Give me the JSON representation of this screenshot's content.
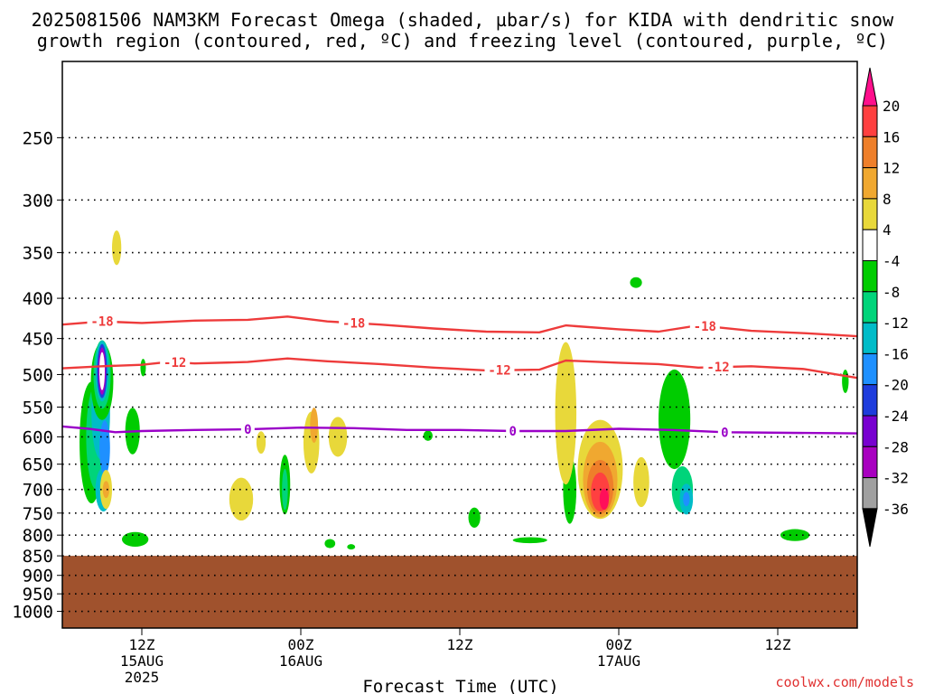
{
  "title_line1": "2025081506 NAM3KM Forecast Omega (shaded, µbar/s) for KIDA with dendritic snow",
  "title_line2": "growth region (contoured, red, ºC) and freezing level (contoured, purple, ºC)",
  "credit": "coolwx.com/models",
  "colors": {
    "ground": "#a0522d",
    "isotherm_dgz": "#ee3b3b",
    "freezing_level": "#9a00c8",
    "grid": "#000000"
  },
  "chart_data": {
    "type": "heatmap",
    "title": "2025081506 NAM3KM Forecast Omega (shaded, µbar/s) for KIDA with dendritic snow growth region (contoured, red, ºC) and freezing level (contoured, purple, ºC)",
    "xlabel": "Forecast Time (UTC)",
    "ylabel": "",
    "x_unit": "forecast hour from 2025-08-15 06Z",
    "xlim": [
      0,
      60
    ],
    "ylim_hpa": [
      1050,
      200
    ],
    "y_ticks": [
      250,
      300,
      350,
      400,
      450,
      500,
      550,
      600,
      650,
      700,
      750,
      800,
      850,
      900,
      950,
      1000
    ],
    "x_ticks": [
      {
        "h": 6,
        "label": "12Z",
        "sub": "15AUG",
        "sub2": "2025"
      },
      {
        "h": 18,
        "label": "00Z",
        "sub": "16AUG",
        "sub2": ""
      },
      {
        "h": 30,
        "label": "12Z",
        "sub": "",
        "sub2": ""
      },
      {
        "h": 42,
        "label": "00Z",
        "sub": "17AUG",
        "sub2": ""
      },
      {
        "h": 54,
        "label": "12Z",
        "sub": "",
        "sub2": ""
      }
    ],
    "ground_below_hpa": 850,
    "colorbar": {
      "unit": "µbar/s",
      "labels": [
        20,
        16,
        12,
        8,
        4,
        -4,
        -8,
        -12,
        -16,
        -20,
        -24,
        -28,
        -32,
        -36
      ],
      "segments": [
        {
          "from": 20,
          "to": 24,
          "color": "#ff0f5a"
        },
        {
          "from": 16,
          "to": 20,
          "color": "#ff4040"
        },
        {
          "from": 12,
          "to": 16,
          "color": "#ee7f2a"
        },
        {
          "from": 8,
          "to": 12,
          "color": "#f0a830"
        },
        {
          "from": 4,
          "to": 8,
          "color": "#e8d83a"
        },
        {
          "from": -4,
          "to": 4,
          "color": "#ffffff"
        },
        {
          "from": -8,
          "to": -4,
          "color": "#00cc00"
        },
        {
          "from": -12,
          "to": -8,
          "color": "#00d47a"
        },
        {
          "from": -16,
          "to": -12,
          "color": "#00bcc8"
        },
        {
          "from": -20,
          "to": -16,
          "color": "#1e90ff"
        },
        {
          "from": -24,
          "to": -20,
          "color": "#1e3cdc"
        },
        {
          "from": -28,
          "to": -24,
          "color": "#7800d0"
        },
        {
          "from": -32,
          "to": -28,
          "color": "#a800c0"
        },
        {
          "from": -36,
          "to": -32,
          "color": "#a0a0a0"
        }
      ],
      "top_arrow_color": "#ff0f8c",
      "bottom_arrow_color": "#000000"
    },
    "isotherms": [
      {
        "name": "-18",
        "color": "#ee3b3b",
        "points": [
          [
            0,
            432
          ],
          [
            3,
            428
          ],
          [
            6,
            430
          ],
          [
            10,
            427
          ],
          [
            14,
            426
          ],
          [
            17,
            422
          ],
          [
            20,
            428
          ],
          [
            24,
            432
          ],
          [
            28,
            437
          ],
          [
            32,
            441
          ],
          [
            36,
            442
          ],
          [
            38,
            433
          ],
          [
            42,
            438
          ],
          [
            45,
            441
          ],
          [
            48,
            433
          ],
          [
            52,
            440
          ],
          [
            56,
            443
          ],
          [
            60,
            447
          ]
        ],
        "labels_at_h": [
          3,
          22,
          48.5
        ]
      },
      {
        "name": "-12",
        "color": "#ee3b3b",
        "points": [
          [
            0,
            491
          ],
          [
            3,
            488
          ],
          [
            6,
            486
          ],
          [
            8,
            482
          ],
          [
            10,
            484
          ],
          [
            14,
            482
          ],
          [
            17,
            477
          ],
          [
            20,
            481
          ],
          [
            24,
            485
          ],
          [
            28,
            490
          ],
          [
            32,
            494
          ],
          [
            36,
            493
          ],
          [
            38,
            480
          ],
          [
            42,
            483
          ],
          [
            45,
            485
          ],
          [
            48,
            490
          ],
          [
            52,
            488
          ],
          [
            56,
            492
          ],
          [
            60,
            505
          ]
        ],
        "labels_at_h": [
          8.5,
          33,
          49.5
        ]
      },
      {
        "name": "0",
        "color": "#9a00c8",
        "points": [
          [
            0,
            582
          ],
          [
            2,
            586
          ],
          [
            4,
            592
          ],
          [
            6,
            590
          ],
          [
            10,
            588
          ],
          [
            14,
            587
          ],
          [
            18,
            584
          ],
          [
            22,
            585
          ],
          [
            26,
            588
          ],
          [
            30,
            588
          ],
          [
            34,
            590
          ],
          [
            38,
            590
          ],
          [
            42,
            586
          ],
          [
            46,
            588
          ],
          [
            50,
            592
          ],
          [
            55,
            593
          ],
          [
            60,
            594
          ]
        ],
        "labels_at_h": [
          14,
          34,
          50
        ]
      }
    ],
    "omega_regions": [
      {
        "h": 2.2,
        "p": 610,
        "dh": 0.9,
        "dp": 215,
        "v": -4
      },
      {
        "h": 2.6,
        "p": 600,
        "dh": 0.8,
        "dp": 185,
        "v": -8
      },
      {
        "h": 2.9,
        "p": 560,
        "dh": 0.7,
        "dp": 150,
        "v": -12
      },
      {
        "h": 3.1,
        "p": 700,
        "dh": 0.6,
        "dp": 90,
        "v": -12
      },
      {
        "h": 3.2,
        "p": 620,
        "dh": 0.4,
        "dp": 100,
        "v": -16
      },
      {
        "h": 3.0,
        "p": 510,
        "dh": 0.85,
        "dp": 115,
        "v": -4
      },
      {
        "h": 3.0,
        "p": 500,
        "dh": 0.65,
        "dp": 100,
        "v": -8
      },
      {
        "h": 3.0,
        "p": 495,
        "dh": 0.5,
        "dp": 88,
        "v": -12
      },
      {
        "h": 3.0,
        "p": 495,
        "dh": 0.38,
        "dp": 78,
        "v": -20
      },
      {
        "h": 3.0,
        "p": 495,
        "dh": 0.28,
        "dp": 68,
        "v": -28
      },
      {
        "h": 3.0,
        "p": 495,
        "dh": 0.18,
        "dp": 55,
        "v": -36
      },
      {
        "h": 3.3,
        "p": 700,
        "dh": 0.45,
        "dp": 80,
        "v": 4
      },
      {
        "h": 3.3,
        "p": 700,
        "dh": 0.25,
        "dp": 35,
        "v": 8
      },
      {
        "h": 4.1,
        "p": 345,
        "dh": 0.35,
        "dp": 35,
        "v": 4
      },
      {
        "h": 6.1,
        "p": 490,
        "dh": 0.12,
        "dp": 25,
        "v": -4
      },
      {
        "h": 5.3,
        "p": 590,
        "dh": 0.55,
        "dp": 80,
        "v": -4
      },
      {
        "h": 5.5,
        "p": 810,
        "dh": 1.0,
        "dp": 35,
        "v": -4
      },
      {
        "h": 13.5,
        "p": 720,
        "dh": 0.9,
        "dp": 90,
        "v": 4
      },
      {
        "h": 15.0,
        "p": 610,
        "dh": 0.35,
        "dp": 40,
        "v": 4
      },
      {
        "h": 16.8,
        "p": 690,
        "dh": 0.4,
        "dp": 120,
        "v": -4
      },
      {
        "h": 16.8,
        "p": 700,
        "dh": 0.22,
        "dp": 85,
        "v": -8
      },
      {
        "h": 18.8,
        "p": 610,
        "dh": 0.6,
        "dp": 110,
        "v": 4
      },
      {
        "h": 19.0,
        "p": 580,
        "dh": 0.3,
        "dp": 60,
        "v": 8
      },
      {
        "h": 20.8,
        "p": 600,
        "dh": 0.7,
        "dp": 70,
        "v": 4
      },
      {
        "h": 20.2,
        "p": 820,
        "dh": 0.4,
        "dp": 22,
        "v": -4
      },
      {
        "h": 21.8,
        "p": 828,
        "dh": 0.3,
        "dp": 8,
        "v": -4
      },
      {
        "h": 27.6,
        "p": 598,
        "dh": 0.35,
        "dp": 18,
        "v": -4
      },
      {
        "h": 31.1,
        "p": 760,
        "dh": 0.45,
        "dp": 45,
        "v": -4
      },
      {
        "h": 35.3,
        "p": 812,
        "dh": 1.3,
        "dp": 14,
        "v": -4
      },
      {
        "h": 38.3,
        "p": 700,
        "dh": 0.5,
        "dp": 140,
        "v": -4
      },
      {
        "h": 38.0,
        "p": 560,
        "dh": 0.8,
        "dp": 230,
        "v": 4
      },
      {
        "h": 40.6,
        "p": 660,
        "dh": 1.7,
        "dp": 190,
        "v": 4
      },
      {
        "h": 40.6,
        "p": 680,
        "dh": 1.3,
        "dp": 150,
        "v": 8
      },
      {
        "h": 40.6,
        "p": 695,
        "dh": 1.0,
        "dp": 110,
        "v": 12
      },
      {
        "h": 40.6,
        "p": 705,
        "dh": 0.7,
        "dp": 80,
        "v": 16
      },
      {
        "h": 40.9,
        "p": 720,
        "dh": 0.35,
        "dp": 45,
        "v": 20
      },
      {
        "h": 43.7,
        "p": 685,
        "dh": 0.6,
        "dp": 100,
        "v": 4
      },
      {
        "h": 43.3,
        "p": 382,
        "dh": 0.45,
        "dp": 12,
        "v": -4
      },
      {
        "h": 46.2,
        "p": 570,
        "dh": 1.2,
        "dp": 165,
        "v": -4
      },
      {
        "h": 46.8,
        "p": 700,
        "dh": 0.8,
        "dp": 95,
        "v": -8
      },
      {
        "h": 47.1,
        "p": 720,
        "dh": 0.5,
        "dp": 65,
        "v": -12
      },
      {
        "h": 47.1,
        "p": 720,
        "dh": 0.25,
        "dp": 30,
        "v": -16
      },
      {
        "h": 55.3,
        "p": 800,
        "dh": 1.1,
        "dp": 28,
        "v": -4
      },
      {
        "h": 59.1,
        "p": 510,
        "dh": 0.25,
        "dp": 35,
        "v": -4
      }
    ]
  }
}
